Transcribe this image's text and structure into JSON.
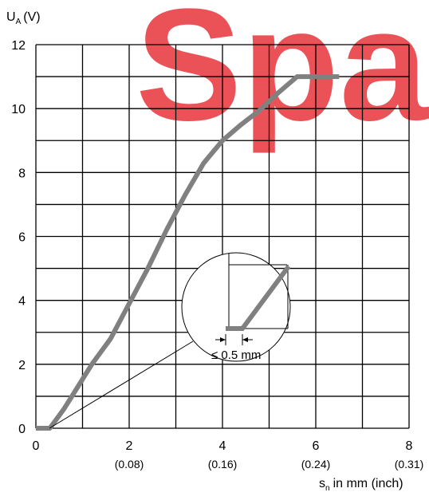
{
  "watermark": "Spa",
  "chart_data": {
    "type": "line",
    "y_axis_symbol": "U",
    "y_axis_subscript": "A",
    "y_axis_unit": "(V)",
    "x_axis_symbol": "s",
    "x_axis_subscript": "n",
    "x_axis_unit": "in mm (inch)",
    "xlim": [
      0,
      8
    ],
    "ylim": [
      0,
      12
    ],
    "x_ticks": [
      "0",
      "2",
      "4",
      "6",
      "8"
    ],
    "x_ticks_secondary": [
      "",
      "(0.08)",
      "(0.16)",
      "(0.24)",
      "(0.31)"
    ],
    "y_ticks": [
      "0",
      "2",
      "4",
      "6",
      "8",
      "10",
      "12"
    ],
    "grid": true,
    "series": [
      {
        "color": "#808080",
        "x": [
          0,
          0.3,
          0.6,
          0.9,
          1.2,
          1.6,
          2.0,
          2.4,
          2.8,
          3.2,
          3.6,
          4.0,
          4.4,
          4.8,
          5.2,
          5.6,
          5.8,
          6.5
        ],
        "y": [
          0,
          0,
          0.6,
          1.3,
          2.0,
          2.8,
          3.9,
          5.0,
          6.2,
          7.3,
          8.3,
          9.0,
          9.5,
          9.95,
          10.5,
          11.0,
          11.0,
          11.0
        ]
      }
    ],
    "inset_annotation": "≤ 0.5 mm"
  }
}
